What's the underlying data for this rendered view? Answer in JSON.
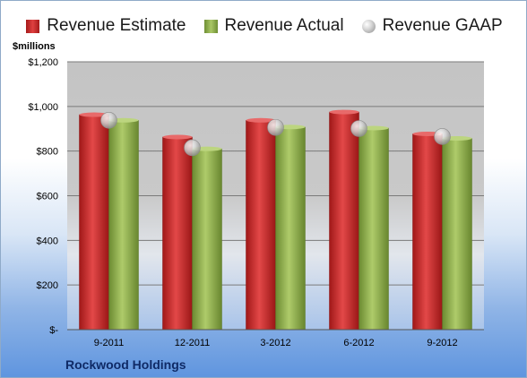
{
  "legend": {
    "estimate": "Revenue Estimate",
    "actual": "Revenue Actual",
    "gaap": "Revenue GAAP"
  },
  "y_unit_label": "$millions",
  "company": "Rockwood Holdings",
  "colors": {
    "estimate": "#cc2a2a",
    "actual": "#8aac4c",
    "gaap": "#c9c9c9"
  },
  "chart_data": {
    "type": "bar",
    "categories": [
      "9-2011",
      "12-2011",
      "3-2012",
      "6-2012",
      "9-2012"
    ],
    "series": [
      {
        "name": "Revenue Estimate",
        "values": [
          963,
          863,
          938,
          975,
          877
        ]
      },
      {
        "name": "Revenue Actual",
        "values": [
          938,
          810,
          908,
          903,
          857
        ]
      },
      {
        "name": "Revenue GAAP",
        "type": "scatter",
        "values": [
          938,
          815,
          906,
          901,
          865
        ]
      }
    ],
    "ylim": [
      0,
      1200
    ],
    "yticks": [
      0,
      200,
      400,
      600,
      800,
      1000,
      1200
    ],
    "ytick_labels": [
      "$-",
      "$200",
      "$400",
      "$600",
      "$800",
      "$1,000",
      "$1,200"
    ],
    "ylabel": "$millions",
    "legend_position": "top",
    "grid": true
  }
}
